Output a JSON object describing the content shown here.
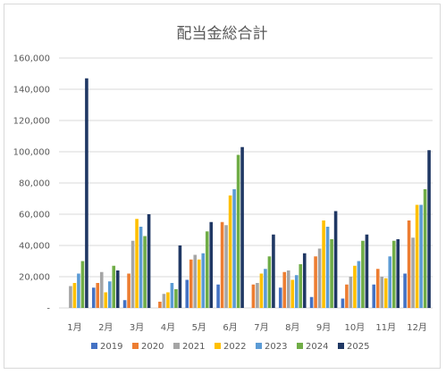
{
  "chart_data": {
    "type": "bar",
    "title": "配当金総合計",
    "xlabel": "",
    "ylabel": "",
    "ylim": [
      0,
      160000
    ],
    "yticks": [
      "-",
      "20,000",
      "40,000",
      "60,000",
      "80,000",
      "100,000",
      "120,000",
      "140,000",
      "160,000"
    ],
    "grid": true,
    "legend_position": "bottom",
    "categories": [
      "1月",
      "2月",
      "3月",
      "4月",
      "5月",
      "6月",
      "7月",
      "8月",
      "9月",
      "10月",
      "11月",
      "12月"
    ],
    "series": [
      {
        "name": "2019",
        "color": "#4472c4",
        "values": [
          0,
          13000,
          5000,
          0,
          18000,
          15000,
          0,
          13000,
          7000,
          6000,
          15000,
          22000
        ]
      },
      {
        "name": "2020",
        "color": "#ed7d31",
        "values": [
          0,
          16000,
          22000,
          4000,
          31000,
          55000,
          15000,
          23000,
          33000,
          15000,
          25000,
          56000
        ]
      },
      {
        "name": "2021",
        "color": "#a5a5a5",
        "values": [
          14000,
          23000,
          43000,
          9000,
          34000,
          53000,
          16000,
          24000,
          38000,
          20000,
          20000,
          45000
        ]
      },
      {
        "name": "2022",
        "color": "#ffc000",
        "values": [
          16000,
          10000,
          57000,
          10000,
          31000,
          72000,
          22000,
          18000,
          56000,
          27000,
          19000,
          66000
        ]
      },
      {
        "name": "2023",
        "color": "#5b9bd5",
        "values": [
          22000,
          17000,
          52000,
          16000,
          35000,
          76000,
          25000,
          21000,
          52000,
          30000,
          33000,
          66000
        ]
      },
      {
        "name": "2024",
        "color": "#70ad47",
        "values": [
          30000,
          27000,
          46000,
          12000,
          49000,
          98000,
          33000,
          28000,
          44000,
          43000,
          43000,
          76000
        ]
      },
      {
        "name": "2025",
        "color": "#203864",
        "values": [
          147000,
          24000,
          60000,
          40000,
          55000,
          103000,
          47000,
          35000,
          62000,
          47000,
          44000,
          101000
        ]
      }
    ]
  }
}
